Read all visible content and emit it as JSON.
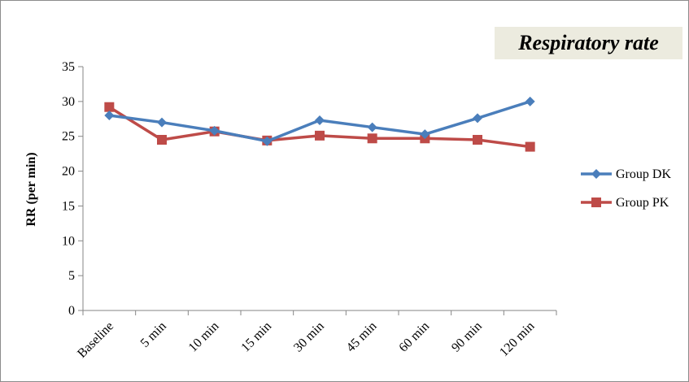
{
  "chart_data": {
    "type": "line",
    "title": "Respiratory rate",
    "ylabel": "RR (per min)",
    "xlabel": "",
    "categories": [
      "Baseline",
      "5 min",
      "10 min",
      "15 min",
      "30 min",
      "45 min",
      "60 min",
      "90 min",
      "120 min"
    ],
    "ylim": [
      0,
      35
    ],
    "yticks": [
      0,
      5,
      10,
      15,
      20,
      25,
      30,
      35
    ],
    "grid": false,
    "legend_position": "right",
    "series": [
      {
        "name": "Group DK",
        "color": "#4a7ebb",
        "marker": "diamond",
        "values": [
          28.0,
          27.0,
          25.8,
          24.3,
          27.3,
          26.3,
          25.3,
          27.6,
          30.0
        ]
      },
      {
        "name": "Group PK",
        "color": "#be4b48",
        "marker": "square",
        "values": [
          29.2,
          24.5,
          25.7,
          24.4,
          25.1,
          24.7,
          24.7,
          24.5,
          23.5
        ]
      }
    ]
  }
}
